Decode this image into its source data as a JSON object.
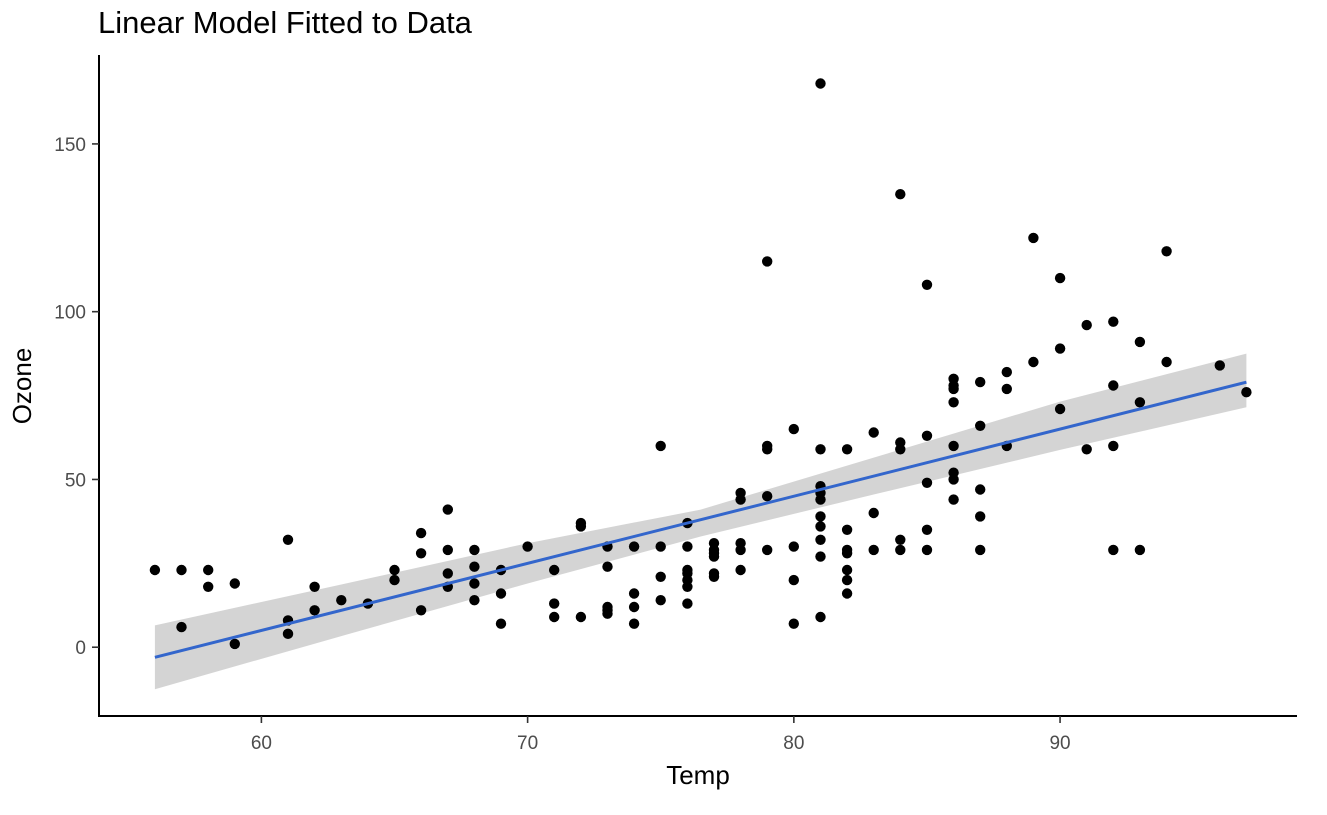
{
  "chart_data": {
    "type": "scatter",
    "title": "Linear Model Fitted to Data",
    "xlabel": "Temp",
    "ylabel": "Ozone",
    "xlim": [
      53.9,
      98.9
    ],
    "ylim": [
      -20.5,
      176.5
    ],
    "x_ticks": [
      60,
      70,
      80,
      90
    ],
    "y_ticks": [
      0,
      50,
      100,
      150
    ],
    "grid": false,
    "point_color": "#000000",
    "fit_color": "#3366cc",
    "band_color": "#cccccc",
    "points": [
      [
        56,
        23
      ],
      [
        57,
        23
      ],
      [
        57,
        6
      ],
      [
        58,
        23
      ],
      [
        58,
        18
      ],
      [
        59,
        19
      ],
      [
        59,
        1
      ],
      [
        61,
        32
      ],
      [
        61,
        8
      ],
      [
        61,
        4
      ],
      [
        62,
        18
      ],
      [
        62,
        11
      ],
      [
        63,
        14
      ],
      [
        64,
        13
      ],
      [
        65,
        23
      ],
      [
        65,
        20
      ],
      [
        66,
        34
      ],
      [
        66,
        28
      ],
      [
        66,
        11
      ],
      [
        67,
        41
      ],
      [
        67,
        29
      ],
      [
        67,
        22
      ],
      [
        67,
        18
      ],
      [
        68,
        29
      ],
      [
        68,
        24
      ],
      [
        68,
        19
      ],
      [
        68,
        14
      ],
      [
        69,
        23
      ],
      [
        69,
        16
      ],
      [
        69,
        7
      ],
      [
        70,
        30
      ],
      [
        71,
        23
      ],
      [
        71,
        13
      ],
      [
        71,
        9
      ],
      [
        72,
        37
      ],
      [
        72,
        36
      ],
      [
        72,
        9
      ],
      [
        73,
        30
      ],
      [
        73,
        24
      ],
      [
        73,
        12
      ],
      [
        73,
        11
      ],
      [
        73,
        10
      ],
      [
        74,
        30
      ],
      [
        74,
        16
      ],
      [
        74,
        12
      ],
      [
        74,
        7
      ],
      [
        75,
        60
      ],
      [
        75,
        30
      ],
      [
        75,
        21
      ],
      [
        75,
        14
      ],
      [
        76,
        37
      ],
      [
        76,
        30
      ],
      [
        76,
        23
      ],
      [
        76,
        22
      ],
      [
        76,
        20
      ],
      [
        76,
        18
      ],
      [
        76,
        13
      ],
      [
        77,
        31
      ],
      [
        77,
        29
      ],
      [
        77,
        28
      ],
      [
        77,
        27
      ],
      [
        77,
        22
      ],
      [
        77,
        21
      ],
      [
        78,
        46
      ],
      [
        78,
        44
      ],
      [
        78,
        31
      ],
      [
        78,
        29
      ],
      [
        78,
        23
      ],
      [
        79,
        115
      ],
      [
        79,
        60
      ],
      [
        79,
        59
      ],
      [
        79,
        45
      ],
      [
        79,
        29
      ],
      [
        80,
        65
      ],
      [
        80,
        30
      ],
      [
        80,
        20
      ],
      [
        80,
        7
      ],
      [
        81,
        168
      ],
      [
        81,
        59
      ],
      [
        81,
        48
      ],
      [
        81,
        46
      ],
      [
        81,
        44
      ],
      [
        81,
        39
      ],
      [
        81,
        36
      ],
      [
        81,
        32
      ],
      [
        81,
        27
      ],
      [
        81,
        9
      ],
      [
        82,
        59
      ],
      [
        82,
        35
      ],
      [
        82,
        29
      ],
      [
        82,
        28
      ],
      [
        82,
        23
      ],
      [
        82,
        20
      ],
      [
        82,
        16
      ],
      [
        83,
        64
      ],
      [
        83,
        40
      ],
      [
        83,
        29
      ],
      [
        84,
        135
      ],
      [
        84,
        61
      ],
      [
        84,
        59
      ],
      [
        84,
        32
      ],
      [
        84,
        29
      ],
      [
        85,
        108
      ],
      [
        85,
        63
      ],
      [
        85,
        49
      ],
      [
        85,
        35
      ],
      [
        85,
        29
      ],
      [
        86,
        80
      ],
      [
        86,
        78
      ],
      [
        86,
        77
      ],
      [
        86,
        73
      ],
      [
        86,
        60
      ],
      [
        86,
        52
      ],
      [
        86,
        50
      ],
      [
        86,
        44
      ],
      [
        87,
        79
      ],
      [
        87,
        66
      ],
      [
        87,
        47
      ],
      [
        87,
        39
      ],
      [
        87,
        29
      ],
      [
        88,
        82
      ],
      [
        88,
        77
      ],
      [
        88,
        60
      ],
      [
        89,
        122
      ],
      [
        89,
        85
      ],
      [
        90,
        110
      ],
      [
        90,
        89
      ],
      [
        90,
        71
      ],
      [
        91,
        96
      ],
      [
        91,
        59
      ],
      [
        92,
        97
      ],
      [
        92,
        78
      ],
      [
        92,
        60
      ],
      [
        92,
        29
      ],
      [
        93,
        91
      ],
      [
        93,
        73
      ],
      [
        93,
        29
      ],
      [
        94,
        118
      ],
      [
        94,
        85
      ],
      [
        96,
        84
      ],
      [
        97,
        76
      ]
    ],
    "fit_line": {
      "x": [
        56,
        97
      ],
      "y": [
        -3,
        79
      ]
    },
    "confidence_band": {
      "x": [
        56,
        63,
        70,
        76.5,
        83,
        90,
        97
      ],
      "lower": [
        -12.5,
        3.3,
        19,
        33,
        45.5,
        58.8,
        71.5
      ],
      "upper": [
        6.5,
        18.7,
        31,
        41,
        56.5,
        73.2,
        87.5
      ]
    }
  }
}
